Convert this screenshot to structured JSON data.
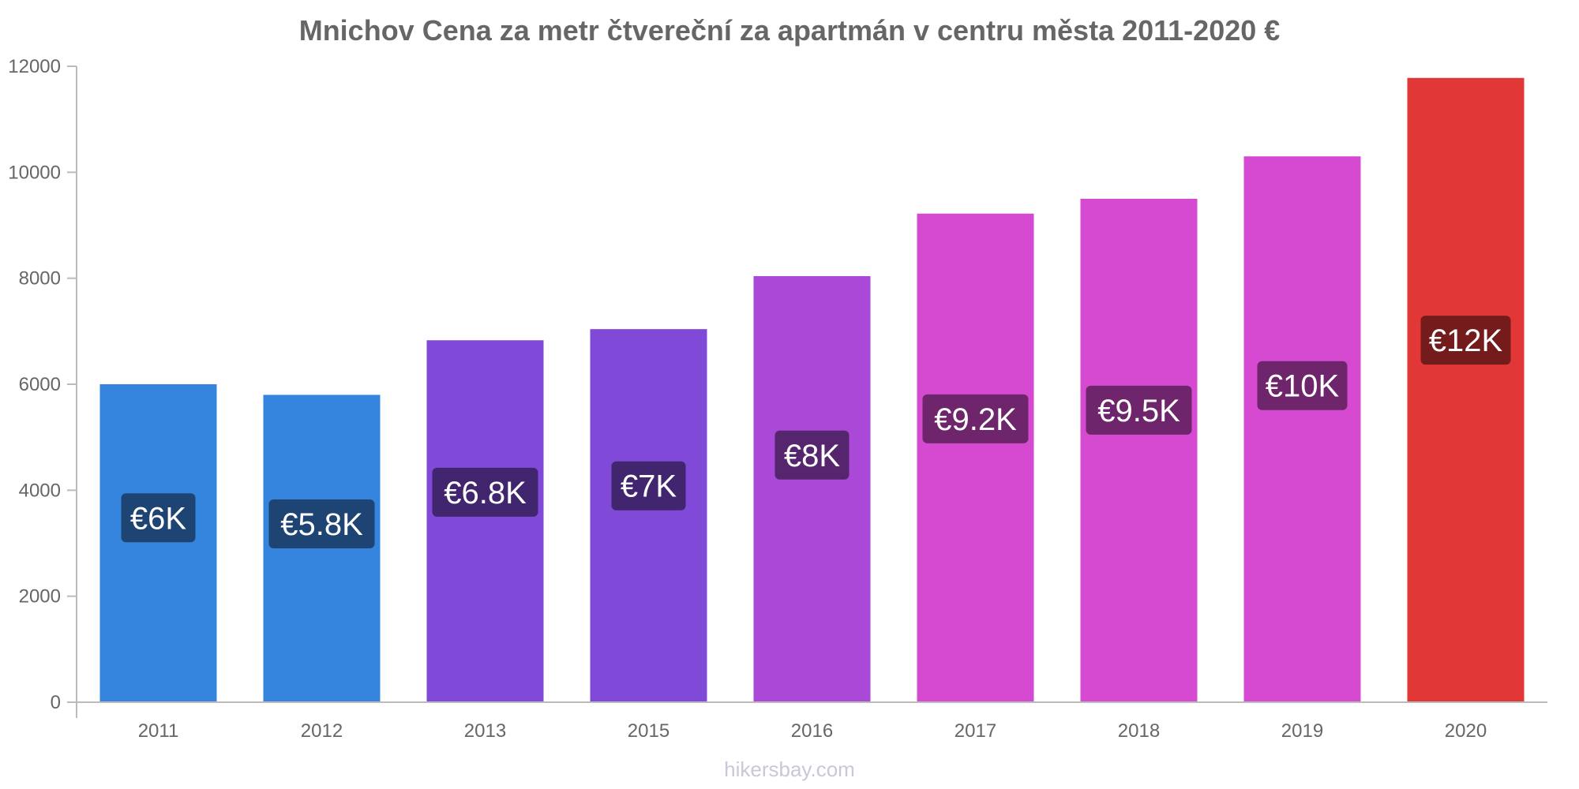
{
  "chart_data": {
    "type": "bar",
    "title": "Mnichov Cena za metr čtvereční za apartmán v centru města 2011-2020 €",
    "xlabel": "",
    "ylabel": "",
    "ylim": [
      0,
      12000
    ],
    "yticks": [
      0,
      2000,
      4000,
      6000,
      8000,
      10000,
      12000
    ],
    "ytick_labels": [
      "0",
      "2000",
      "4000",
      "6000",
      "8000",
      "10000",
      "12000"
    ],
    "grid": false,
    "legend": "none",
    "categories": [
      "2011",
      "2012",
      "2013",
      "2015",
      "2016",
      "2017",
      "2018",
      "2019",
      "2020"
    ],
    "values": [
      6000,
      5800,
      6830,
      7040,
      8040,
      9220,
      9500,
      10300,
      11780
    ],
    "data_labels": [
      "€6K",
      "€5.8K",
      "€6.8K",
      "€7K",
      "€8K",
      "€9.2K",
      "€9.5K",
      "€10K",
      "€12K"
    ],
    "bar_colors": [
      "#3584de",
      "#3584de",
      "#8049d8",
      "#8049d8",
      "#aa48d8",
      "#d64ad2",
      "#d64ad2",
      "#d64ad2",
      "#e13737"
    ],
    "label_colors": [
      "#1e4473",
      "#1e4473",
      "#42256f",
      "#42256f",
      "#55256e",
      "#6e256b",
      "#6e256b",
      "#6e256b",
      "#741b1b"
    ]
  },
  "watermark": "hikersbay.com",
  "colors": {
    "axis": "#bbbbbb",
    "tick_text": "#666666",
    "title": "#666666",
    "watermark": "#c8c8d8"
  }
}
